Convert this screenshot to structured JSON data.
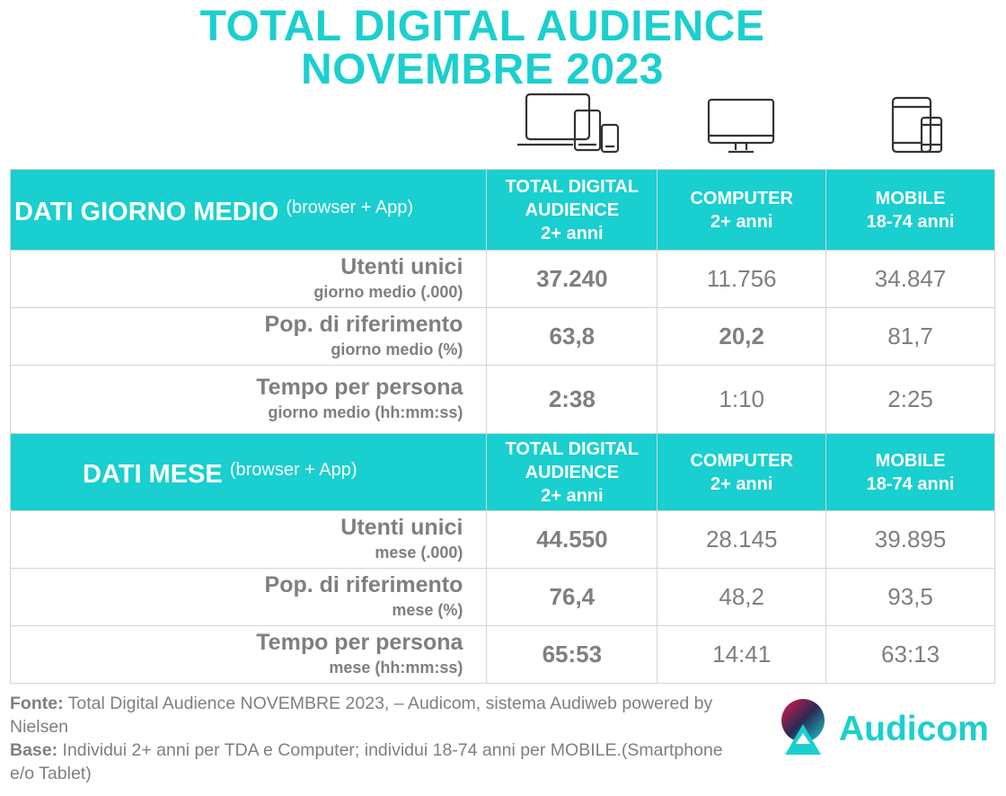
{
  "title": {
    "line1": "TOTAL DIGITAL AUDIENCE",
    "line2": "NOVEMBRE 2023"
  },
  "icons": [
    "devices-icon",
    "computer-icon",
    "mobile-icon"
  ],
  "section_day": {
    "title": "DATI GIORNO MEDIO",
    "note": "(browser + App)",
    "headers": [
      {
        "l1": "TOTAL DIGITAL",
        "l2": "AUDIENCE",
        "l3": "2+ anni"
      },
      {
        "l1": "COMPUTER",
        "l2": "2+ anni"
      },
      {
        "l1": "MOBILE",
        "l2": "18-74 anni"
      }
    ],
    "rows": [
      {
        "main": "Utenti unici",
        "sub": "giorno medio (.000)",
        "v": [
          "37.240",
          "11.756",
          "34.847"
        ]
      },
      {
        "main": "Pop. di riferimento",
        "sub": "giorno medio (%)",
        "v": [
          "63,8",
          "20,2",
          "81,7"
        ]
      },
      {
        "main": "Tempo per persona",
        "sub": "giorno medio (hh:mm:ss)",
        "v": [
          "2:38",
          "1:10",
          "2:25"
        ]
      }
    ]
  },
  "section_month": {
    "title": "DATI MESE",
    "note": "(browser + App)",
    "headers": [
      {
        "l1": "TOTAL DIGITAL",
        "l2": "AUDIENCE",
        "l3": "2+ anni"
      },
      {
        "l1": "COMPUTER",
        "l2": "2+ anni"
      },
      {
        "l1": "MOBILE",
        "l2": "18-74 anni"
      }
    ],
    "rows": [
      {
        "main": "Utenti unici",
        "sub": "mese (.000)",
        "v": [
          "44.550",
          "28.145",
          "39.895"
        ]
      },
      {
        "main": "Pop. di riferimento",
        "sub": "mese (%)",
        "v": [
          "76,4",
          "48,2",
          "93,5"
        ]
      },
      {
        "main": "Tempo per persona",
        "sub": "mese (hh:mm:ss)",
        "v": [
          "65:53",
          "14:41",
          "63:13"
        ]
      }
    ]
  },
  "footer": {
    "fonte_label": "Fonte:",
    "fonte_text": " Total Digital Audience NOVEMBRE 2023, – Audicom, sistema Audiweb powered by Nielsen",
    "base_label": "Base:",
    "base_text": "  Individui 2+ anni per TDA e Computer; individui 18-74 anni per MOBILE.(Smartphone e/o Tablet)"
  },
  "logo": {
    "text": "Audicom"
  },
  "colors": {
    "accent": "#19cfcf",
    "text": "#7f7f7f"
  }
}
